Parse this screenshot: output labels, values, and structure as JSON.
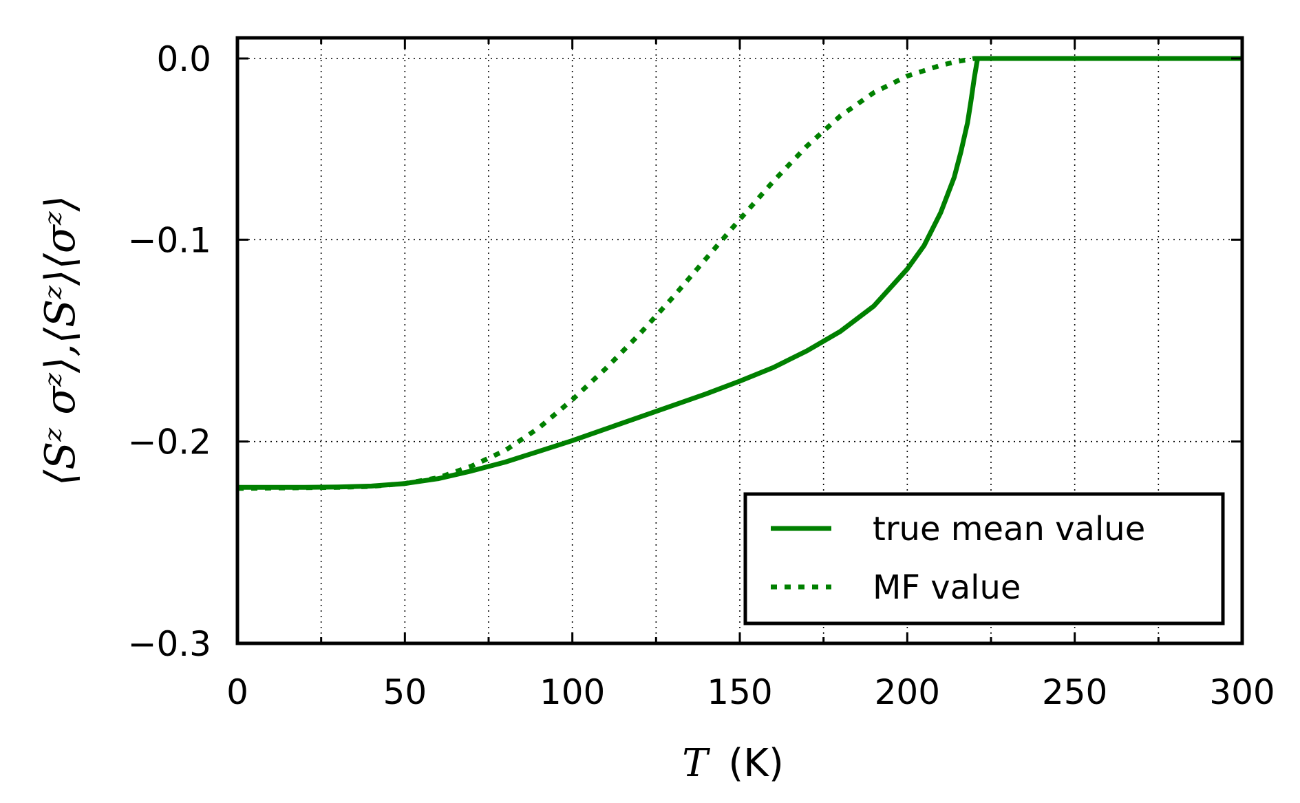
{
  "chart_data": {
    "type": "line",
    "title": "",
    "xlabel_var": "T",
    "xlabel_unit": "(K)",
    "ylabel": "⟨Sᶻ σᶻ⟩,⟨Sᶻ⟩⟨σᶻ⟩",
    "xlim": [
      0,
      300
    ],
    "ylim": [
      -0.3,
      0.0
    ],
    "xticks": [
      0,
      25,
      50,
      75,
      100,
      125,
      150,
      175,
      200,
      225,
      250,
      275,
      300
    ],
    "xtick_labels": [
      "0",
      "",
      "50",
      "",
      "100",
      "",
      "150",
      "",
      "200",
      "",
      "250",
      "",
      "300"
    ],
    "yticks": [
      -0.3,
      -0.2,
      -0.1,
      0.0
    ],
    "ytick_labels": [
      "−0.3",
      "−0.2",
      "−0.1",
      "0.0"
    ],
    "grid": true,
    "legend_position": "lower-right",
    "line_color": "#008000",
    "series": [
      {
        "name": "true mean value",
        "style": "solid",
        "points": [
          [
            0,
            -0.22
          ],
          [
            20,
            -0.22
          ],
          [
            30,
            -0.2198
          ],
          [
            40,
            -0.2193
          ],
          [
            50,
            -0.218
          ],
          [
            60,
            -0.2155
          ],
          [
            70,
            -0.2115
          ],
          [
            80,
            -0.207
          ],
          [
            90,
            -0.2015
          ],
          [
            100,
            -0.196
          ],
          [
            110,
            -0.19
          ],
          [
            120,
            -0.184
          ],
          [
            130,
            -0.178
          ],
          [
            140,
            -0.172
          ],
          [
            150,
            -0.1655
          ],
          [
            160,
            -0.1585
          ],
          [
            170,
            -0.15
          ],
          [
            180,
            -0.14
          ],
          [
            190,
            -0.127
          ],
          [
            200,
            -0.108
          ],
          [
            205,
            -0.096
          ],
          [
            210,
            -0.079
          ],
          [
            214,
            -0.061
          ],
          [
            216,
            -0.048
          ],
          [
            218,
            -0.033
          ],
          [
            219,
            -0.022
          ],
          [
            220,
            -0.01
          ],
          [
            221,
            0.0
          ],
          [
            300,
            0.0
          ]
        ]
      },
      {
        "name": "MF value",
        "style": "dotted",
        "points": [
          [
            0,
            -0.2205
          ],
          [
            30,
            -0.22
          ],
          [
            40,
            -0.2195
          ],
          [
            50,
            -0.218
          ],
          [
            60,
            -0.215
          ],
          [
            70,
            -0.209
          ],
          [
            80,
            -0.201
          ],
          [
            90,
            -0.1895
          ],
          [
            100,
            -0.175
          ],
          [
            110,
            -0.159
          ],
          [
            120,
            -0.1415
          ],
          [
            130,
            -0.1225
          ],
          [
            140,
            -0.1025
          ],
          [
            150,
            -0.0825
          ],
          [
            160,
            -0.063
          ],
          [
            170,
            -0.045
          ],
          [
            180,
            -0.0295
          ],
          [
            190,
            -0.0175
          ],
          [
            200,
            -0.009
          ],
          [
            210,
            -0.0035
          ],
          [
            215,
            -0.0015
          ],
          [
            220,
            0.0
          ],
          [
            300,
            0.0
          ]
        ]
      }
    ]
  }
}
